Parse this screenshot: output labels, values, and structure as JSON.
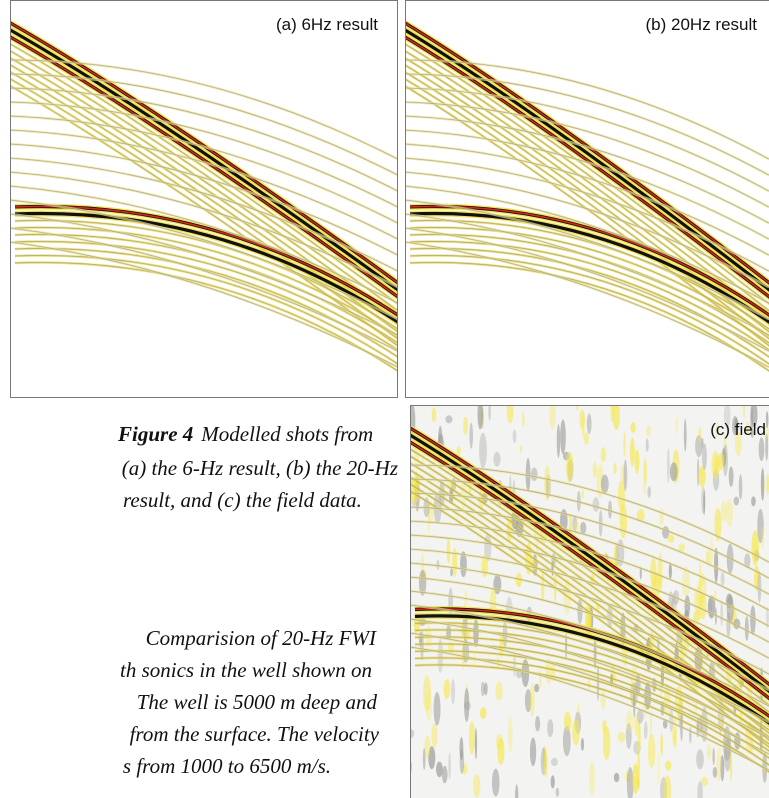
{
  "panels": [
    {
      "label": "(a) 6Hz result"
    },
    {
      "label": "(b) 20Hz result"
    },
    {
      "label": "(c) field"
    }
  ],
  "caption": {
    "title": "Figure 4",
    "lines": [
      "Modelled shots from",
      "(a) the 6-Hz result, (b) the 20-Hz",
      "result, and (c) the field data."
    ]
  },
  "second_caption": {
    "lines": [
      "Comparision of 20-Hz FWI",
      "th sonics in the well shown on",
      "The well is 5000 m deep and",
      "from the surface.  The velocity",
      "s from 1000 to 6500 m/s."
    ]
  }
}
